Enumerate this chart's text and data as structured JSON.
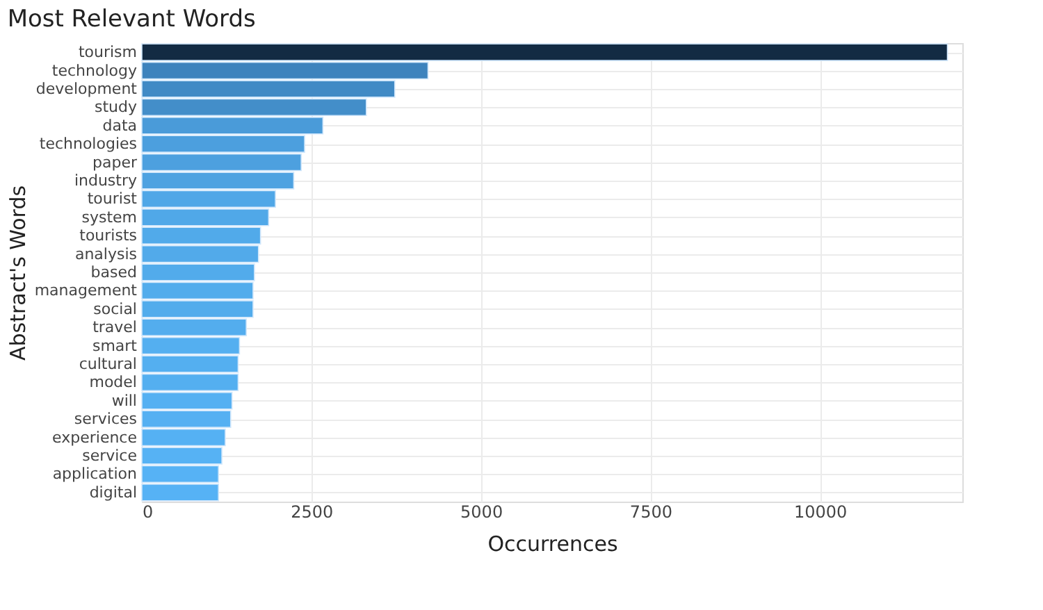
{
  "chart_data": {
    "type": "bar",
    "orientation": "horizontal",
    "title": "Most Relevant Words",
    "xlabel": "Occurrences",
    "ylabel": "Abstract's Words",
    "categories": [
      "tourism",
      "technology",
      "development",
      "study",
      "data",
      "technologies",
      "paper",
      "industry",
      "tourist",
      "system",
      "tourists",
      "analysis",
      "based",
      "management",
      "social",
      "travel",
      "smart",
      "cultural",
      "model",
      "will",
      "services",
      "experience",
      "service",
      "application",
      "digital"
    ],
    "values": [
      11880,
      4220,
      3730,
      3310,
      2670,
      2400,
      2350,
      2240,
      1970,
      1870,
      1750,
      1720,
      1660,
      1640,
      1640,
      1540,
      1440,
      1420,
      1420,
      1330,
      1310,
      1230,
      1180,
      1130,
      1130
    ],
    "colors": [
      "#132b43",
      "#3d83bd",
      "#418ac5",
      "#438ec9",
      "#4a9bd9",
      "#4c9fde",
      "#4da0df",
      "#4ea2e1",
      "#50a7e7",
      "#50a8e8",
      "#51aaea",
      "#52aaea",
      "#52abeb",
      "#52acec",
      "#52acec",
      "#53adee",
      "#54aff0",
      "#54aff0",
      "#54aff0",
      "#55b0f2",
      "#55b0f2",
      "#55b1f3",
      "#56b2f4",
      "#56b2f5",
      "#56b2f5"
    ],
    "xlim": [
      0,
      12100
    ],
    "xticks": [
      0,
      2500,
      5000,
      7500,
      10000
    ],
    "grid": true
  }
}
